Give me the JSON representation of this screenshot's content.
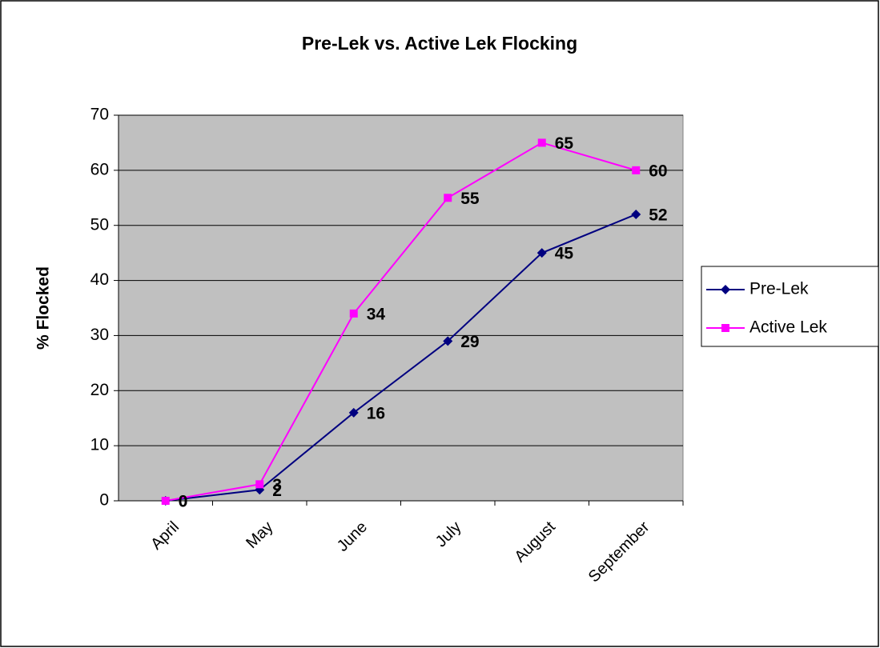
{
  "chart_data": {
    "type": "line",
    "title": "Pre-Lek vs. Active Lek Flocking",
    "y_label": "% Flocked",
    "categories": [
      "April",
      "May",
      "June",
      "July",
      "August",
      "September"
    ],
    "series": [
      {
        "name": "Pre-Lek",
        "color": "#000080",
        "marker": "diamond",
        "values": [
          0,
          2,
          16,
          29,
          45,
          52
        ]
      },
      {
        "name": "Active Lek",
        "color": "#ff00ff",
        "marker": "square",
        "values": [
          0,
          3,
          34,
          55,
          65,
          60
        ]
      }
    ],
    "ylim": [
      0,
      70
    ],
    "yticks": [
      0,
      10,
      20,
      30,
      40,
      50,
      60,
      70
    ],
    "grid": true,
    "legend": "right"
  }
}
